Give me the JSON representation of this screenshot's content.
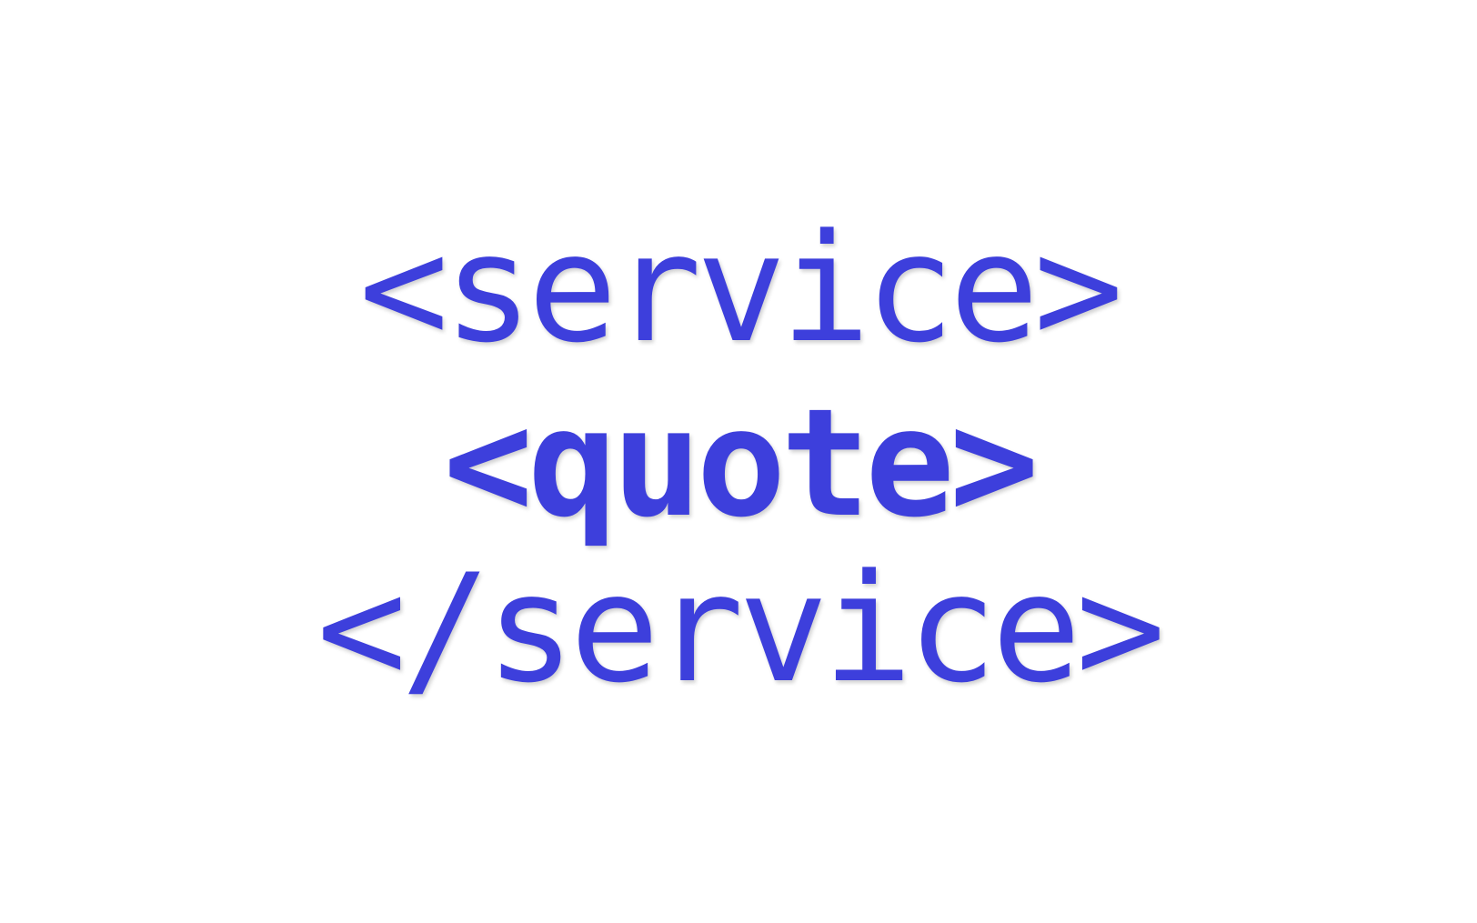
{
  "logo": {
    "line1": "<service>",
    "line2": "<quote>",
    "line3": "</service>",
    "color": "#3d3fdc"
  },
  "background": "#ffffff"
}
